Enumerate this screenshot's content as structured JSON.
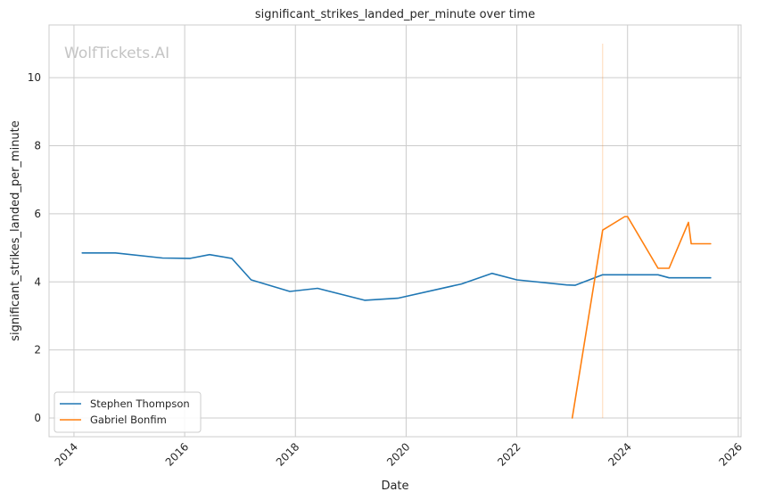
{
  "chart_data": {
    "type": "line",
    "title": "significant_strikes_landed_per_minute over time",
    "xlabel": "Date",
    "ylabel": "significant_strikes_landed_per_minute",
    "watermark": "WolfTickets.AI",
    "xlim": [
      2013.55,
      2026.05
    ],
    "ylim": [
      -0.55,
      11.55
    ],
    "xticks": [
      2014,
      2016,
      2018,
      2020,
      2022,
      2024,
      2026
    ],
    "yticks": [
      0,
      2,
      4,
      6,
      8,
      10
    ],
    "grid": true,
    "legend_position": "lower-left",
    "series": [
      {
        "name": "Stephen Thompson",
        "color": "#1f77b4",
        "x": [
          2014.15,
          2014.75,
          2015.6,
          2016.1,
          2016.45,
          2016.85,
          2017.2,
          2017.9,
          2018.4,
          2019.25,
          2019.85,
          2021.0,
          2021.55,
          2022.0,
          2022.9,
          2023.05,
          2023.55,
          2024.0,
          2024.55,
          2024.75,
          2025.0,
          2025.5
        ],
        "y": [
          4.85,
          4.85,
          4.7,
          4.69,
          4.8,
          4.69,
          4.06,
          3.72,
          3.81,
          3.46,
          3.52,
          3.94,
          4.25,
          4.06,
          3.91,
          3.9,
          4.21,
          4.21,
          4.21,
          4.12,
          4.12,
          4.12
        ]
      },
      {
        "name": "Gabriel Bonfim",
        "color": "#ff7f0e",
        "x": [
          2023.0,
          2023.55,
          2023.95,
          2024.0,
          2024.55,
          2024.75,
          2025.1,
          2025.15,
          2025.5
        ],
        "y": [
          0.0,
          5.52,
          5.92,
          5.92,
          4.4,
          4.4,
          5.75,
          5.12,
          5.12
        ]
      }
    ],
    "vertical_marker": {
      "x": 2023.55,
      "y": [
        0.0,
        11.0
      ],
      "color": "#ff7f0e"
    }
  }
}
